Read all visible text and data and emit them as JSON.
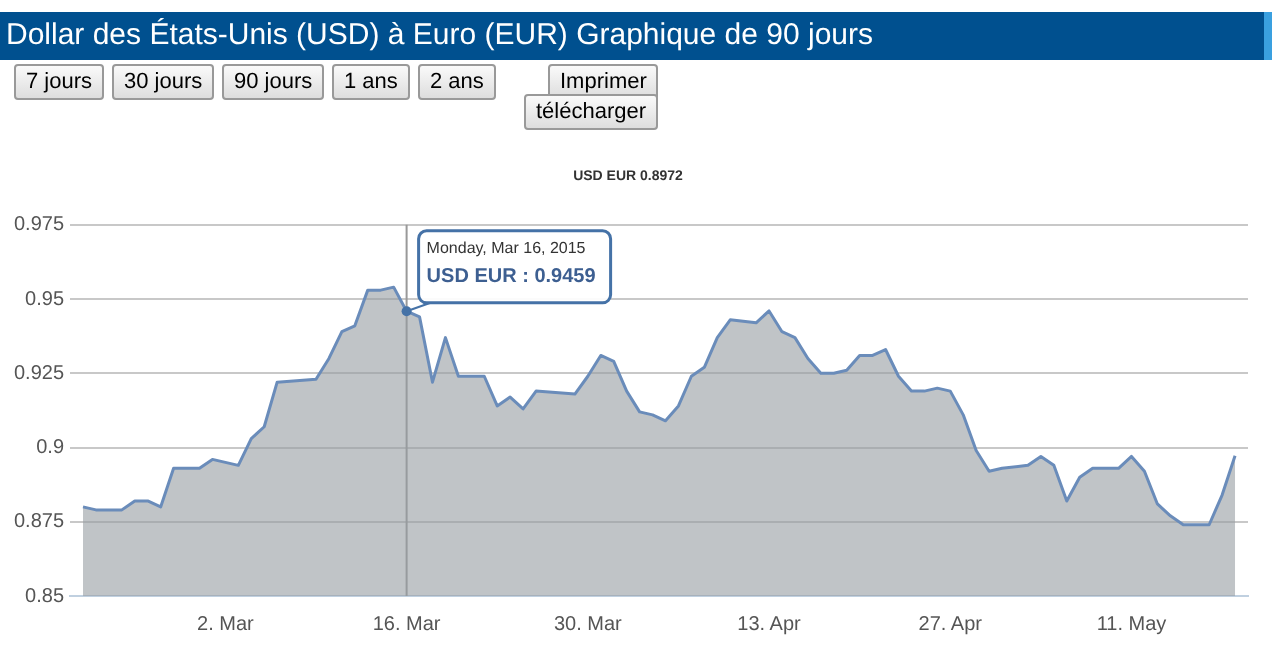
{
  "chart_data": {
    "type": "area",
    "title": "Dollar des États-Unis (USD) à Euro (EUR) Graphique de 90 jours",
    "subtitle": "USD EUR 0.8972",
    "annotations": [
      "7 jours",
      "30 jours",
      "90 jours",
      "1 ans",
      "2 ans",
      "Imprimer",
      "télécharger",
      {
        "text": "Monday, Mar 16, 2015\nUSD EUR : 0.9459",
        "x": "2015-03-16",
        "y": 0.9459
      }
    ],
    "x": [
      "2015-02-19",
      "2015-02-20",
      "2015-02-22",
      "2015-02-23",
      "2015-02-24",
      "2015-02-25",
      "2015-02-26",
      "2015-02-28",
      "2015-03-01",
      "2015-03-03",
      "2015-03-04",
      "2015-03-05",
      "2015-03-06",
      "2015-03-09",
      "2015-03-10",
      "2015-03-11",
      "2015-03-12",
      "2015-03-13",
      "2015-03-14",
      "2015-03-15",
      "2015-03-16",
      "2015-03-17",
      "2015-03-18",
      "2015-03-19",
      "2015-03-20",
      "2015-03-22",
      "2015-03-23",
      "2015-03-24",
      "2015-03-25",
      "2015-03-26",
      "2015-03-29",
      "2015-03-30",
      "2015-03-31",
      "2015-04-01",
      "2015-04-02",
      "2015-04-03",
      "2015-04-04",
      "2015-04-05",
      "2015-04-06",
      "2015-04-07",
      "2015-04-08",
      "2015-04-09",
      "2015-04-10",
      "2015-04-12",
      "2015-04-13",
      "2015-04-14",
      "2015-04-15",
      "2015-04-16",
      "2015-04-17",
      "2015-04-18",
      "2015-04-19",
      "2015-04-20",
      "2015-04-21",
      "2015-04-22",
      "2015-04-23",
      "2015-04-24",
      "2015-04-25",
      "2015-04-26",
      "2015-04-27",
      "2015-04-28",
      "2015-04-29",
      "2015-04-30",
      "2015-05-01",
      "2015-05-03",
      "2015-05-04",
      "2015-05-05",
      "2015-05-06",
      "2015-05-07",
      "2015-05-08",
      "2015-05-10",
      "2015-05-11",
      "2015-05-12",
      "2015-05-13",
      "2015-05-14",
      "2015-05-15",
      "2015-05-16",
      "2015-05-17",
      "2015-05-18",
      "2015-05-19"
    ],
    "series": [
      {
        "color": "#6a8cba",
        "values": [
          0.88,
          0.879,
          0.879,
          0.882,
          0.882,
          0.88,
          0.893,
          0.893,
          0.896,
          0.894,
          0.903,
          0.907,
          0.922,
          0.923,
          0.93,
          0.939,
          0.941,
          0.953,
          0.953,
          0.954,
          0.9459,
          0.944,
          0.922,
          0.937,
          0.924,
          0.924,
          0.914,
          0.917,
          0.913,
          0.919,
          0.918,
          0.924,
          0.931,
          0.929,
          0.919,
          0.912,
          0.911,
          0.909,
          0.914,
          0.924,
          0.927,
          0.937,
          0.943,
          0.942,
          0.946,
          0.939,
          0.937,
          0.93,
          0.925,
          0.925,
          0.926,
          0.931,
          0.931,
          0.933,
          0.924,
          0.919,
          0.919,
          0.92,
          0.919,
          0.911,
          0.899,
          0.892,
          0.893,
          0.894,
          0.897,
          0.894,
          0.882,
          0.89,
          0.893,
          0.893,
          0.897,
          0.892,
          0.881,
          0.877,
          0.874,
          0.874,
          0.874,
          0.884,
          0.8972
        ]
      }
    ],
    "xlim": [
      "2015-02-18",
      "2015-05-20"
    ],
    "xticks": [
      {
        "value": "2015-03-02",
        "label": "2. Mar"
      },
      {
        "value": "2015-03-16",
        "label": "16. Mar"
      },
      {
        "value": "2015-03-30",
        "label": "30. Mar"
      },
      {
        "value": "2015-04-13",
        "label": "13. Apr"
      },
      {
        "value": "2015-04-27",
        "label": "27. Apr"
      },
      {
        "value": "2015-05-11",
        "label": "11. May"
      }
    ],
    "ylim": [
      0.85,
      0.975
    ],
    "yticks": [
      0.85,
      0.875,
      0.9,
      0.925,
      0.95,
      0.975
    ],
    "ref_lines": [
      {
        "axis": "x",
        "value": "2015-03-16",
        "color": "#999999"
      }
    ],
    "grid": "y",
    "marker": "none"
  }
}
